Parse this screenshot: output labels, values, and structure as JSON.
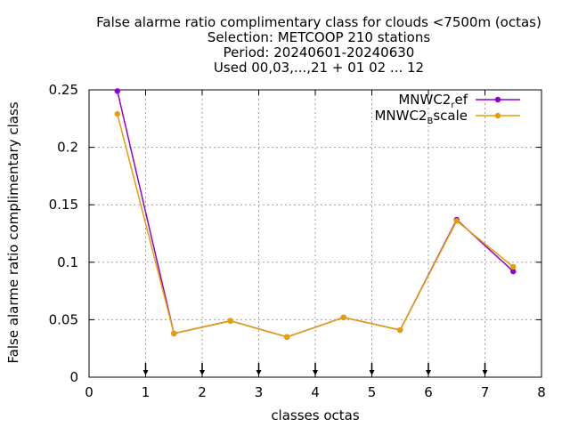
{
  "chart_data": {
    "type": "line",
    "title_lines": [
      "False alarme ratio complimentary class  for clouds <7500m (octas)",
      "Selection: METCOOP    210 stations",
      "Period: 20240601-20240630",
      "Used 00,03,...,21 + 01 02 ... 12"
    ],
    "xlabel": "classes octas",
    "ylabel": "False alarme ratio complimentary class",
    "xlim": [
      0,
      8
    ],
    "ylim": [
      0,
      0.25
    ],
    "x_ticks": [
      "0",
      "1",
      "2",
      "3",
      "4",
      "5",
      "6",
      "7",
      "8"
    ],
    "y_ticks": [
      "0",
      "0.05",
      "0.1",
      "0.15",
      "0.2",
      "0.25"
    ],
    "grid": true,
    "legend_position": "top-right",
    "class_markers_x": [
      1,
      2,
      3,
      4,
      5,
      6,
      7
    ],
    "series": [
      {
        "name": "MNWC2_ref",
        "legend_main": "MNWC2",
        "legend_sub": "r",
        "legend_tail": "ef",
        "color": "#9400d3",
        "x": [
          0.5,
          1.5,
          2.5,
          3.5,
          4.5,
          5.5,
          6.5,
          7.5
        ],
        "values": [
          0.249,
          0.038,
          0.049,
          0.035,
          0.052,
          0.041,
          0.137,
          0.092
        ]
      },
      {
        "name": "MNWC2_Bscale",
        "legend_main": "MNWC2",
        "legend_sub": "B",
        "legend_tail": "scale",
        "color": "#e69f00",
        "x": [
          0.5,
          1.5,
          2.5,
          3.5,
          4.5,
          5.5,
          6.5,
          7.5
        ],
        "values": [
          0.229,
          0.038,
          0.049,
          0.035,
          0.052,
          0.041,
          0.136,
          0.096
        ]
      }
    ]
  }
}
